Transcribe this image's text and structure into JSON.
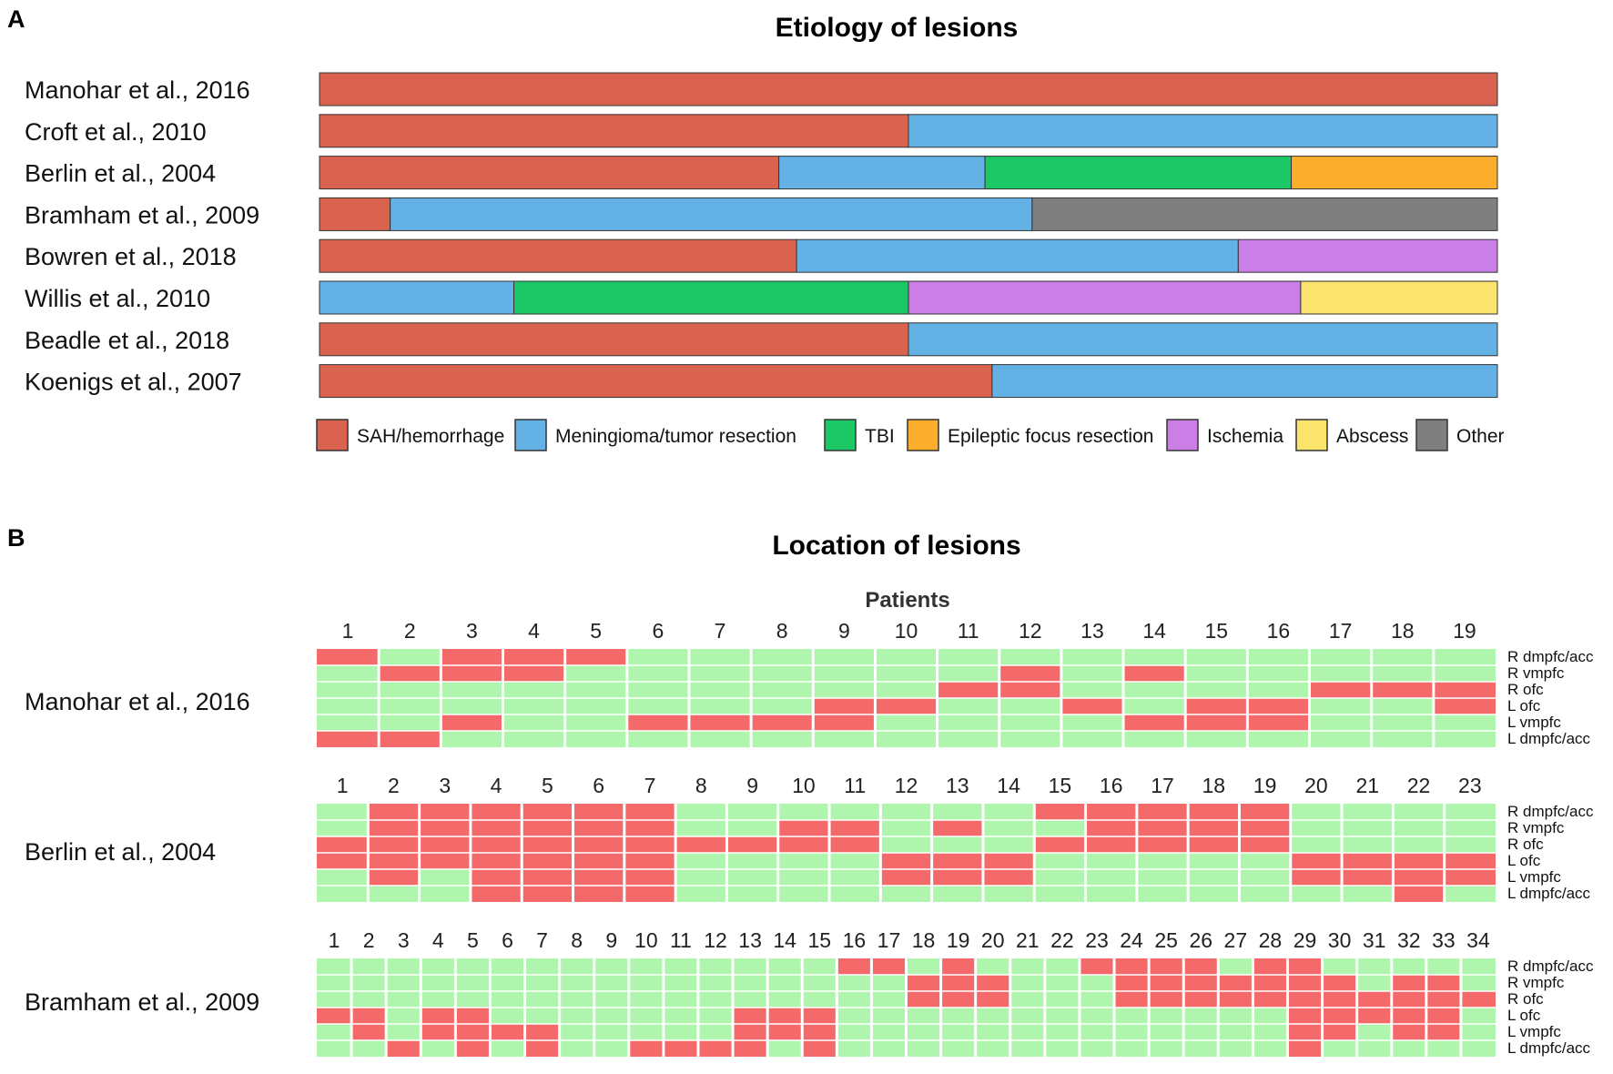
{
  "colors": {
    "SAH/hemorrhage": "#D9634E",
    "Meningioma/tumor resection": "#64B2E5",
    "TBI": "#1CC765",
    "Epileptic focus resection": "#FBAE2C",
    "Ischemia": "#CB7EE5",
    "Abscess": "#FBE46C",
    "Other": "#7F7F7F",
    "lesion_present": "#F46A6A",
    "lesion_absent": "#B0F5AE"
  },
  "chart_data": [
    {
      "type": "bar",
      "panel_label": "A",
      "title": "Etiology of lesions",
      "orientation": "horizontal",
      "stacked": true,
      "xlim": [
        0,
        1
      ],
      "categories": [
        "Manohar et al., 2016",
        "Croft et al., 2010",
        "Berlin et al., 2004",
        "Bramham et al., 2009",
        "Bowren et al., 2018",
        "Willis et al., 2010",
        "Beadle et al., 2018",
        "Koenigs et al., 2007"
      ],
      "series": [
        {
          "name": "SAH/hemorrhage",
          "values": [
            1.0,
            0.5,
            0.39,
            0.06,
            0.405,
            0.0,
            0.5,
            0.571
          ]
        },
        {
          "name": "Meningioma/tumor resection",
          "values": [
            0.0,
            0.5,
            0.175,
            0.545,
            0.375,
            0.165,
            0.5,
            0.429
          ]
        },
        {
          "name": "TBI",
          "values": [
            0.0,
            0.0,
            0.26,
            0.0,
            0.0,
            0.335,
            0.0,
            0.0
          ]
        },
        {
          "name": "Epileptic focus resection",
          "values": [
            0.0,
            0.0,
            0.175,
            0.0,
            0.0,
            0.0,
            0.0,
            0.0
          ]
        },
        {
          "name": "Ischemia",
          "values": [
            0.0,
            0.0,
            0.0,
            0.0,
            0.22,
            0.333,
            0.0,
            0.0
          ]
        },
        {
          "name": "Abscess",
          "values": [
            0.0,
            0.0,
            0.0,
            0.0,
            0.0,
            0.167,
            0.0,
            0.0
          ]
        },
        {
          "name": "Other",
          "values": [
            0.0,
            0.0,
            0.0,
            0.395,
            0.0,
            0.0,
            0.0,
            0.0
          ]
        }
      ],
      "legend": [
        "SAH/hemorrhage",
        "Meningioma/tumor resection",
        "TBI",
        "Epileptic focus resection",
        "Ischemia",
        "Abscess",
        "Other"
      ]
    },
    {
      "type": "heatmap",
      "panel_label": "B",
      "title": "Location of lesions",
      "xlabel": "Patients",
      "row_labels": [
        "R dmpfc/acc",
        "R vmpfc",
        "R ofc",
        "L ofc",
        "L vmpfc",
        "L dmpfc/acc"
      ],
      "value_meaning": "1 = lesion present (red), 0 = absent (green)",
      "studies": [
        {
          "name": "Manohar et al., 2016",
          "patients": [
            "1",
            "2",
            "3",
            "4",
            "5",
            "6",
            "7",
            "8",
            "9",
            "10",
            "11",
            "12",
            "13",
            "14",
            "15",
            "16",
            "17",
            "18",
            "19"
          ],
          "matrix": [
            [
              1,
              0,
              1,
              1,
              1,
              0,
              0,
              0,
              0,
              0,
              0,
              0,
              0,
              0,
              0,
              0,
              0,
              0,
              0
            ],
            [
              0,
              1,
              1,
              1,
              0,
              0,
              0,
              0,
              0,
              0,
              0,
              1,
              0,
              1,
              0,
              0,
              0,
              0,
              0
            ],
            [
              0,
              0,
              0,
              0,
              0,
              0,
              0,
              0,
              0,
              0,
              1,
              1,
              0,
              0,
              0,
              0,
              1,
              1,
              1
            ],
            [
              0,
              0,
              0,
              0,
              0,
              0,
              0,
              0,
              1,
              1,
              0,
              0,
              1,
              0,
              1,
              1,
              0,
              0,
              1
            ],
            [
              0,
              0,
              1,
              0,
              0,
              1,
              1,
              1,
              1,
              0,
              0,
              0,
              0,
              1,
              1,
              1,
              0,
              0,
              0
            ],
            [
              1,
              1,
              0,
              0,
              0,
              0,
              0,
              0,
              0,
              0,
              0,
              0,
              0,
              0,
              0,
              0,
              0,
              0,
              0
            ]
          ]
        },
        {
          "name": "Berlin et al., 2004",
          "patients": [
            "1",
            "2",
            "3",
            "4",
            "5",
            "6",
            "7",
            "8",
            "9",
            "10",
            "11",
            "12",
            "13",
            "14",
            "15",
            "16",
            "17",
            "18",
            "19",
            "20",
            "21",
            "22",
            "23"
          ],
          "matrix": [
            [
              0,
              1,
              1,
              1,
              1,
              1,
              1,
              0,
              0,
              0,
              0,
              0,
              0,
              0,
              1,
              1,
              1,
              1,
              1,
              0,
              0,
              0,
              0
            ],
            [
              0,
              1,
              1,
              1,
              1,
              1,
              1,
              0,
              0,
              1,
              1,
              0,
              1,
              0,
              0,
              1,
              1,
              1,
              1,
              0,
              0,
              0,
              0
            ],
            [
              1,
              1,
              1,
              1,
              1,
              1,
              1,
              1,
              1,
              1,
              1,
              0,
              0,
              0,
              1,
              1,
              1,
              1,
              1,
              0,
              0,
              0,
              0
            ],
            [
              1,
              1,
              1,
              1,
              1,
              1,
              1,
              0,
              0,
              0,
              0,
              1,
              1,
              1,
              0,
              0,
              0,
              0,
              0,
              1,
              1,
              1,
              1
            ],
            [
              0,
              1,
              0,
              1,
              1,
              1,
              1,
              0,
              0,
              0,
              0,
              1,
              1,
              1,
              0,
              0,
              0,
              0,
              0,
              1,
              1,
              1,
              1
            ],
            [
              0,
              0,
              0,
              1,
              1,
              1,
              1,
              0,
              0,
              0,
              0,
              0,
              0,
              0,
              0,
              0,
              0,
              0,
              0,
              0,
              0,
              1,
              0
            ]
          ]
        },
        {
          "name": "Bramham et al., 2009",
          "patients": [
            "1",
            "2",
            "3",
            "4",
            "5",
            "6",
            "7",
            "8",
            "9",
            "10",
            "11",
            "12",
            "13",
            "14",
            "15",
            "16",
            "17",
            "18",
            "19",
            "20",
            "21",
            "22",
            "23",
            "24",
            "25",
            "26",
            "27",
            "28",
            "29",
            "30",
            "31",
            "32",
            "33",
            "34"
          ],
          "matrix": [
            [
              0,
              0,
              0,
              0,
              0,
              0,
              0,
              0,
              0,
              0,
              0,
              0,
              0,
              0,
              0,
              1,
              1,
              0,
              1,
              0,
              0,
              0,
              1,
              1,
              1,
              1,
              0,
              1,
              1,
              0,
              0,
              0,
              0,
              0
            ],
            [
              0,
              0,
              0,
              0,
              0,
              0,
              0,
              0,
              0,
              0,
              0,
              0,
              0,
              0,
              0,
              0,
              0,
              1,
              1,
              1,
              0,
              0,
              0,
              1,
              1,
              1,
              1,
              1,
              1,
              1,
              0,
              1,
              1,
              0
            ],
            [
              0,
              0,
              0,
              0,
              0,
              0,
              0,
              0,
              0,
              0,
              0,
              0,
              0,
              0,
              0,
              0,
              0,
              1,
              1,
              1,
              0,
              0,
              0,
              1,
              1,
              1,
              1,
              1,
              1,
              1,
              1,
              1,
              1,
              1
            ],
            [
              1,
              1,
              0,
              1,
              1,
              0,
              0,
              0,
              0,
              0,
              0,
              0,
              1,
              1,
              1,
              0,
              0,
              0,
              0,
              0,
              0,
              0,
              0,
              0,
              0,
              0,
              0,
              0,
              1,
              1,
              1,
              1,
              1,
              0
            ],
            [
              0,
              1,
              0,
              1,
              1,
              1,
              1,
              0,
              0,
              0,
              0,
              0,
              1,
              1,
              1,
              0,
              0,
              0,
              0,
              0,
              0,
              0,
              0,
              0,
              0,
              0,
              0,
              0,
              1,
              1,
              0,
              1,
              1,
              0
            ],
            [
              0,
              0,
              1,
              0,
              1,
              0,
              1,
              0,
              0,
              1,
              1,
              1,
              1,
              0,
              1,
              0,
              0,
              0,
              0,
              0,
              0,
              0,
              0,
              0,
              0,
              0,
              0,
              0,
              1,
              0,
              0,
              0,
              0,
              0
            ]
          ]
        }
      ]
    }
  ]
}
